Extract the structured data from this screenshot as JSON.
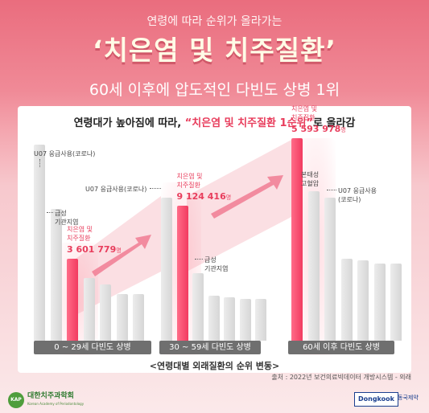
{
  "header": {
    "subtitle": "연령에 따라 순위가 올라가는",
    "title": "‘치은염 및 치주질환’",
    "headline": "60세 이후에 압도적인 다빈도 상병 1위"
  },
  "intro": {
    "before": "연령대가 높아짐에 따라, ",
    "highlight": "“치은염 및 치주질환 1순위”",
    "after": "로 올라감"
  },
  "chart_data": {
    "type": "bar",
    "title": "<연령대별 외래질환의 순위 변동>",
    "source": "출처 : 2022년 보건의료빅데이터 개방시스템 - 외래",
    "groups": [
      {
        "label": "0 ~ 29세 다빈도 상병",
        "highlight_label": "치은염 및\n치주질환",
        "highlight_value": "3 601 779",
        "value_unit": "명",
        "highlight_rank": 3,
        "ranks": [
          1,
          2,
          3,
          4,
          5,
          6,
          7
        ],
        "annotations": [
          {
            "rank": 1,
            "text": "U07 응급사용(코로나)"
          },
          {
            "rank": 2,
            "text": "급성\n기관지염"
          }
        ]
      },
      {
        "label": "30 ~ 59세 다빈도 상병",
        "highlight_label": "치은염 및\n치주질환",
        "highlight_value": "9 124 416",
        "value_unit": "명",
        "highlight_rank": 2,
        "ranks": [
          1,
          2,
          3,
          4,
          5,
          6,
          7
        ],
        "annotations": [
          {
            "rank": 1,
            "text": "U07 응급사용(코로나)"
          },
          {
            "rank": 3,
            "text": "급성\n기관지염"
          }
        ]
      },
      {
        "label": "60세 이후 다빈도 상병",
        "highlight_label": "치은염 및\n치주질환",
        "highlight_value": "5 593 978",
        "value_unit": "명",
        "highlight_rank": 1,
        "ranks": [
          1,
          2,
          3,
          4,
          5,
          6,
          7
        ],
        "annotations": [
          {
            "rank": 2,
            "text": "본태성\n고혈압"
          },
          {
            "rank": 3,
            "text": "U07 응급사용\n(코로나)"
          }
        ]
      }
    ]
  },
  "footer": {
    "org_name": "대한치주과학회",
    "org_sub": "Korean Academy of Periodontology",
    "org_seal": "KAP",
    "company_logo": "Dongkook",
    "company_name": "동국제약"
  },
  "colors": {
    "highlight": "#e83d5c",
    "bar": "#dcdcdc",
    "pill": "#6f6f6f"
  }
}
